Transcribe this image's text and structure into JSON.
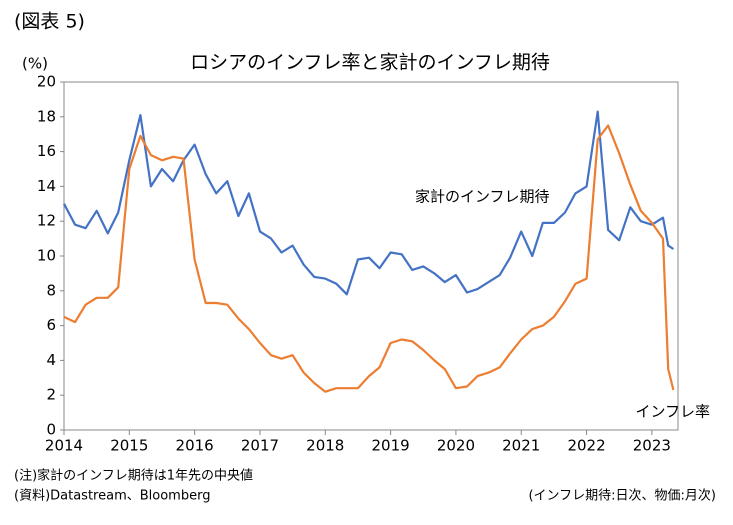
{
  "figure_label": "(図表 5)",
  "chart_data": {
    "type": "line",
    "title": "ロシアのインフレ率と家計のインフレ期待",
    "y_label": "(%)",
    "x": [
      2014.0,
      2014.17,
      2014.33,
      2014.5,
      2014.67,
      2014.83,
      2015.0,
      2015.17,
      2015.33,
      2015.5,
      2015.67,
      2015.83,
      2016.0,
      2016.17,
      2016.33,
      2016.5,
      2016.67,
      2016.83,
      2017.0,
      2017.17,
      2017.33,
      2017.5,
      2017.67,
      2017.83,
      2018.0,
      2018.17,
      2018.33,
      2018.5,
      2018.67,
      2018.83,
      2019.0,
      2019.17,
      2019.33,
      2019.5,
      2019.67,
      2019.83,
      2020.0,
      2020.17,
      2020.33,
      2020.5,
      2020.67,
      2020.83,
      2021.0,
      2021.17,
      2021.33,
      2021.5,
      2021.67,
      2021.83,
      2022.0,
      2022.17,
      2022.33,
      2022.5,
      2022.67,
      2022.83,
      2023.0,
      2023.17,
      2023.25,
      2023.33
    ],
    "series": [
      {
        "name": "家計のインフレ期待",
        "color": "#4472c4",
        "values": [
          13.0,
          11.8,
          11.6,
          12.6,
          11.3,
          12.5,
          15.5,
          18.1,
          14.0,
          15.0,
          14.3,
          15.5,
          16.4,
          14.7,
          13.6,
          14.3,
          12.3,
          13.6,
          11.4,
          11.0,
          10.2,
          10.6,
          9.5,
          8.8,
          8.7,
          8.4,
          7.8,
          9.8,
          9.9,
          9.3,
          10.2,
          10.1,
          9.2,
          9.4,
          9.0,
          8.5,
          8.9,
          7.9,
          8.1,
          8.5,
          8.9,
          9.9,
          11.4,
          10.0,
          11.9,
          11.9,
          12.5,
          13.6,
          14.0,
          18.3,
          11.5,
          10.9,
          12.8,
          12.0,
          11.8,
          12.2,
          10.6,
          10.4
        ]
      },
      {
        "name": "インフレ率",
        "color": "#ed7d31",
        "values": [
          6.5,
          6.2,
          7.2,
          7.6,
          7.6,
          8.2,
          15.0,
          16.9,
          15.8,
          15.5,
          15.7,
          15.6,
          9.8,
          7.3,
          7.3,
          7.2,
          6.4,
          5.8,
          5.0,
          4.3,
          4.1,
          4.3,
          3.3,
          2.7,
          2.2,
          2.4,
          2.4,
          2.4,
          3.1,
          3.6,
          5.0,
          5.2,
          5.1,
          4.6,
          4.0,
          3.5,
          2.4,
          2.5,
          3.1,
          3.3,
          3.6,
          4.4,
          5.2,
          5.8,
          6.0,
          6.5,
          7.4,
          8.4,
          8.7,
          16.7,
          17.5,
          15.9,
          14.1,
          12.6,
          11.9,
          11.0,
          3.5,
          2.3
        ]
      }
    ],
    "xlim": [
      2014,
      2023.4
    ],
    "xticks": [
      2014,
      2015,
      2016,
      2017,
      2018,
      2019,
      2020,
      2021,
      2022,
      2023
    ],
    "ylim": [
      0,
      20
    ],
    "yticks": [
      0,
      2,
      4,
      6,
      8,
      10,
      12,
      14,
      16,
      18,
      20
    ],
    "grid": false
  },
  "notes": [
    "(注)家計のインフレ期待は1年先の中央値",
    "(資料)Datastream、Bloomberg"
  ],
  "frequency_note": "(インフレ期待:日次、物価:月次)"
}
